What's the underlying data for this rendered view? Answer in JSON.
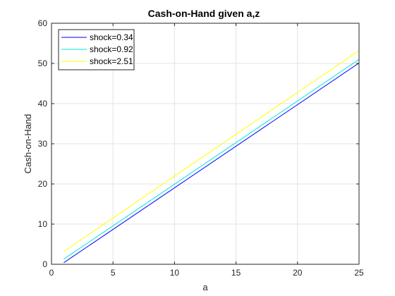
{
  "chart_data": {
    "type": "line",
    "title": "Cash-on-Hand given a,z",
    "xlabel": "a",
    "ylabel": "Cash-on-Hand",
    "xlim": [
      0,
      25
    ],
    "ylim": [
      0,
      60
    ],
    "xticks": [
      0,
      5,
      10,
      15,
      20,
      25
    ],
    "yticks": [
      0,
      10,
      20,
      30,
      40,
      50,
      60
    ],
    "grid": true,
    "legend_position": "top-left",
    "series": [
      {
        "name": "shock=0.34",
        "color": "#0000ff",
        "x": [
          1,
          25
        ],
        "y": [
          0.4,
          50.1
        ]
      },
      {
        "name": "shock=0.92",
        "color": "#00e5e5",
        "x": [
          1,
          25
        ],
        "y": [
          1.3,
          51.0
        ]
      },
      {
        "name": "shock=2.51",
        "color": "#ffff00",
        "x": [
          1,
          25
        ],
        "y": [
          3.2,
          53.2
        ]
      }
    ]
  }
}
